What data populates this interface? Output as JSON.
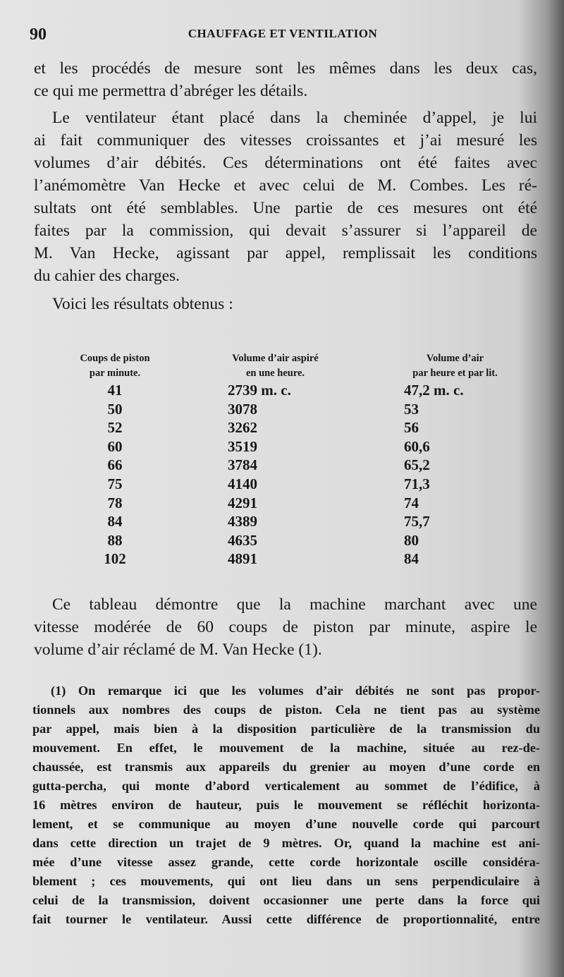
{
  "header": {
    "page_number": "90",
    "running_title": "CHAUFFAGE ET VENTILATION"
  },
  "paragraphs": [
    {
      "lines": [
        "et les procédés de mesure sont les mêmes dans les deux cas,",
        "ce qui me permettra d’abréger les détails."
      ]
    },
    {
      "lines": [
        "Le ventilateur étant placé dans la cheminée d’appel, je lui",
        "ai fait communiquer des vitesses croissantes et j’ai mesuré les",
        "volumes d’air débités. Ces déterminations ont été faites avec",
        "l’anémomètre Van Hecke et avec celui de M. Combes. Les ré-",
        "sultats ont été semblables. Une partie de ces mesures ont été",
        "faites par la commission, qui devait s’assurer si l’appareil de",
        "M. Van Hecke, agissant par appel, remplissait les conditions",
        "du cahier des charges."
      ]
    },
    {
      "lines": [
        "Voici les résultats obtenus :"
      ]
    }
  ],
  "table": {
    "headers": [
      [
        "Coups de piston",
        "par minute."
      ],
      [
        "Volume d’air aspiré",
        "en une heure."
      ],
      [
        "Volume d’air",
        "par heure et par lit."
      ]
    ],
    "rows": [
      [
        "41",
        "2739 m. c.",
        "47,2 m. c."
      ],
      [
        "50",
        "3078",
        "53"
      ],
      [
        "52",
        "3262",
        "56"
      ],
      [
        "60",
        "3519",
        "60,6"
      ],
      [
        "66",
        "3784",
        "65,2"
      ],
      [
        "75",
        "4140",
        "71,3"
      ],
      [
        "78",
        "4291",
        "74"
      ],
      [
        "84",
        "4389",
        "75,7"
      ],
      [
        "88",
        "4635",
        "80"
      ],
      [
        "102",
        "4891",
        "84"
      ]
    ]
  },
  "conclusion": {
    "lines": [
      "Ce tableau démontre que la machine marchant avec une",
      "vitesse modérée de 60 coups de piston par minute, aspire le",
      "volume d’air réclamé de M. Van Hecke (1)."
    ]
  },
  "footnote": {
    "lines": [
      "(1) On remarque ici que les volumes d’air débités ne sont pas propor-",
      "tionnels aux nombres des coups de piston. Cela ne tient pas au système",
      "par appel, mais bien à la disposition particulière de la transmission du",
      "mouvement. En effet, le mouvement de la machine, située au rez-de-",
      "chaussée, est transmis aux appareils du grenier au moyen d’une corde en",
      "gutta-percha, qui monte d’abord verticalement au sommet de l’édifice, à",
      "16 mètres environ de hauteur, puis le mouvement se réfléchit horizonta-",
      "lement, et se communique au moyen d’une nouvelle corde qui parcourt",
      "dans cette direction un trajet de 9 mètres. Or, quand la machine est ani-",
      "mée d’une vitesse assez grande, cette corde horizontale oscille considéra-",
      "blement ; ces mouvements, qui ont lieu dans un sens perpendiculaire à",
      "celui de la transmission, doivent occasionner une perte dans la force qui",
      "fait tourner le ventilateur. Aussi cette différence de proportionnalité, entre"
    ]
  }
}
